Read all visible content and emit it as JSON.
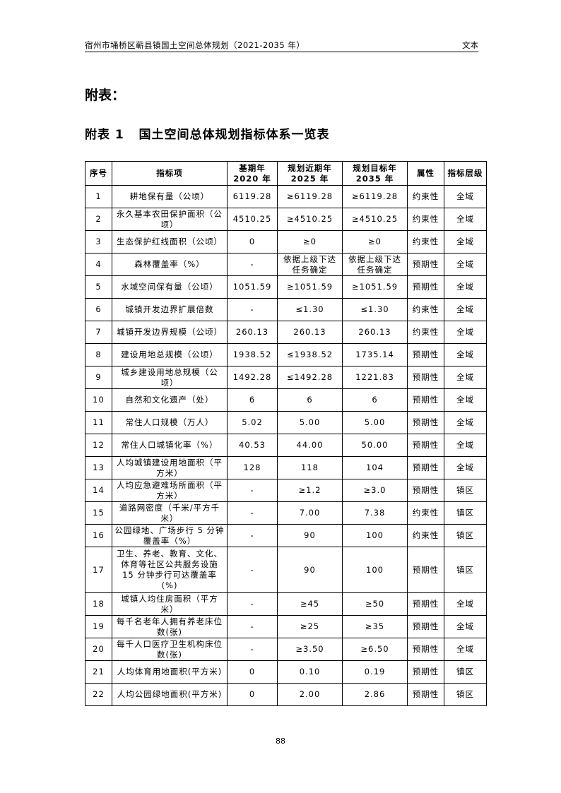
{
  "header": {
    "left": "宿州市埇桥区蕲县镇国土空间总体规划（2021-2035 年）",
    "right": "文本"
  },
  "title": "附表：",
  "table_title": "附表 1   国土空间总体规划指标体系一览表",
  "table": {
    "columns": [
      "序号",
      "指标项",
      "基期年\n2020 年",
      "规划近期年\n2025 年",
      "规划目标年\n2035 年",
      "属性",
      "指标层级"
    ],
    "rows": [
      [
        "1",
        "耕地保有量（公顷）",
        "6119.28",
        "≥6119.28",
        "≥6119.28",
        "约束性",
        "全域"
      ],
      [
        "2",
        "永久基本农田保护面积（公顷）",
        "4510.25",
        "≥4510.25",
        "≥4510.25",
        "约束性",
        "全域"
      ],
      [
        "3",
        "生态保护红线面积（公顷）",
        "0",
        "≥0",
        "≥0",
        "约束性",
        "全域"
      ],
      [
        "4",
        "森林覆盖率（%）",
        "-",
        "依据上级下达任务确定",
        "依据上级下达任务确定",
        "预期性",
        "全域"
      ],
      [
        "5",
        "水域空间保有量（公顷）",
        "1051.59",
        "≥1051.59",
        "≥1051.59",
        "预期性",
        "全域"
      ],
      [
        "6",
        "城镇开发边界扩展倍数",
        "-",
        "≤1.30",
        "≤1.30",
        "约束性",
        "全域"
      ],
      [
        "7",
        "城镇开发边界规模（公顷）",
        "260.13",
        "260.13",
        "260.13",
        "约束性",
        "全域"
      ],
      [
        "8",
        "建设用地总规模（公顷）",
        "1938.52",
        "≤1938.52",
        "1735.14",
        "预期性",
        "全域"
      ],
      [
        "9",
        "城乡建设用地总规模（公顷）",
        "1492.28",
        "≤1492.28",
        "1221.83",
        "预期性",
        "全域"
      ],
      [
        "10",
        "自然和文化遗产（处）",
        "6",
        "6",
        "6",
        "预期性",
        "全域"
      ],
      [
        "11",
        "常住人口规模（万人）",
        "5.02",
        "5.00",
        "5.00",
        "预期性",
        "全域"
      ],
      [
        "12",
        "常住人口城镇化率（%）",
        "40.53",
        "44.00",
        "50.00",
        "预期性",
        "全域"
      ],
      [
        "13",
        "人均城镇建设用地面积（平方米）",
        "128",
        "118",
        "104",
        "预期性",
        "全域"
      ],
      [
        "14",
        "人均应急避难场所面积（平方米）",
        "-",
        "≥1.2",
        "≥3.0",
        "预期性",
        "镇区"
      ],
      [
        "15",
        "道路网密度（千米/平方千米）",
        "-",
        "7.00",
        "7.38",
        "约束性",
        "镇区"
      ],
      [
        "16",
        "公园绿地、广场步行 5 分钟覆盖率（%）",
        "-",
        "90",
        "100",
        "约束性",
        "镇区"
      ],
      [
        "17",
        "卫生、养老、教育、文化、体育等社区公共服务设施 15 分钟步行可达覆盖率(%)",
        "-",
        "90",
        "100",
        "预期性",
        "镇区"
      ],
      [
        "18",
        "城镇人均住房面积（平方米）",
        "-",
        "≥45",
        "≥50",
        "预期性",
        "全域"
      ],
      [
        "19",
        "每千名老年人拥有养老床位数(张)",
        "-",
        "≥25",
        "≥35",
        "预期性",
        "全域"
      ],
      [
        "20",
        "每千人口医疗卫生机构床位数(张)",
        "-",
        "≥3.50",
        "≥6.50",
        "预期性",
        "全域"
      ],
      [
        "21",
        "人均体育用地面积(平方米)",
        "0",
        "0.10",
        "0.19",
        "预期性",
        "镇区"
      ],
      [
        "22",
        "人均公园绿地面积(平方米)",
        "0",
        "2.00",
        "2.86",
        "预期性",
        "镇区"
      ]
    ]
  },
  "page_number": "88"
}
